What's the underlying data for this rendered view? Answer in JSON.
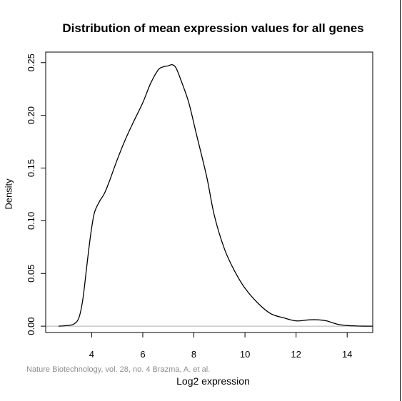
{
  "chart_data": {
    "type": "line",
    "title": "Distribution of mean expression values for all genes",
    "xlabel": "Log2 expression",
    "ylabel": "Density",
    "xlim": [
      2.2,
      15.0
    ],
    "ylim": [
      -0.006,
      0.26
    ],
    "x_ticks": [
      4,
      6,
      8,
      10,
      12,
      14
    ],
    "x_tick_labels": [
      "4",
      "6",
      "8",
      "10",
      "12",
      "14"
    ],
    "y_ticks": [
      0.0,
      0.05,
      0.1,
      0.15,
      0.2,
      0.25
    ],
    "y_tick_labels": [
      "0.00",
      "0.05",
      "0.10",
      "0.15",
      "0.20",
      "0.25"
    ],
    "baseline": 0,
    "grid": false,
    "series": [
      {
        "name": "density",
        "x": [
          2.7,
          3.0,
          3.3,
          3.5,
          3.65,
          3.8,
          3.95,
          4.1,
          4.3,
          4.5,
          4.7,
          5.0,
          5.3,
          5.6,
          6.0,
          6.3,
          6.6,
          6.8,
          7.0,
          7.15,
          7.3,
          7.5,
          7.8,
          8.1,
          8.5,
          8.8,
          9.2,
          9.6,
          10.0,
          10.5,
          11.0,
          11.5,
          12.0,
          12.5,
          12.9,
          13.2,
          13.6,
          14.0,
          14.5,
          15.0
        ],
        "y": [
          0.0,
          0.0005,
          0.002,
          0.008,
          0.025,
          0.055,
          0.085,
          0.107,
          0.118,
          0.126,
          0.138,
          0.158,
          0.176,
          0.192,
          0.212,
          0.23,
          0.243,
          0.246,
          0.247,
          0.248,
          0.245,
          0.233,
          0.212,
          0.182,
          0.142,
          0.105,
          0.073,
          0.052,
          0.036,
          0.022,
          0.012,
          0.008,
          0.005,
          0.006,
          0.006,
          0.005,
          0.002,
          0.0006,
          0.0001,
          0.0
        ]
      }
    ]
  },
  "credit": "Nature Biotechnology, vol. 28, no. 4 Brazma, A. et al."
}
